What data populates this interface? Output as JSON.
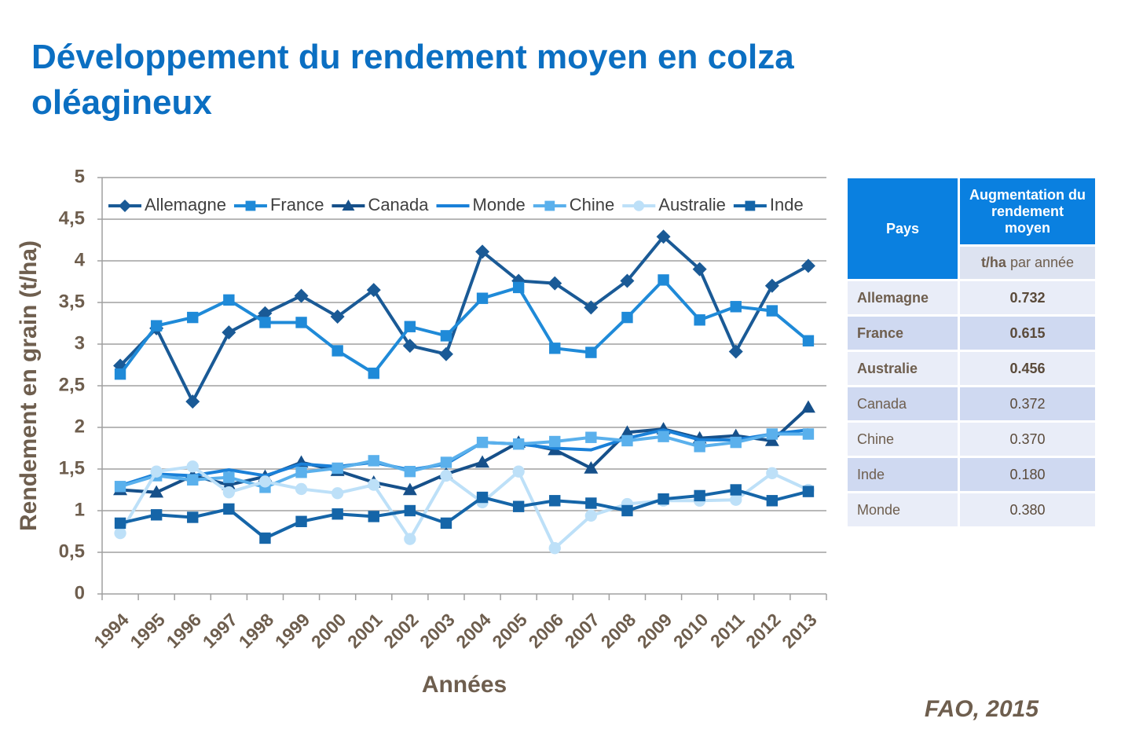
{
  "title": "Développement du rendement moyen en colza oléagineux",
  "chart_data": {
    "type": "line",
    "xlabel": "Années",
    "ylabel": "Rendement en grain (t/ha)",
    "categories": [
      "1994",
      "1995",
      "1996",
      "1997",
      "1998",
      "1999",
      "2000",
      "2001",
      "2002",
      "2003",
      "2004",
      "2005",
      "2006",
      "2007",
      "2008",
      "2009",
      "2010",
      "2011",
      "2012",
      "2013"
    ],
    "ylim": [
      0,
      5
    ],
    "yticks": [
      0,
      {
        "value": 0.5,
        "label": "0,5"
      },
      1,
      {
        "value": 1.5,
        "label": "1,5"
      },
      2,
      {
        "value": 2.5,
        "label": "2,5"
      },
      3,
      {
        "value": 3.5,
        "label": "3,5"
      },
      4,
      {
        "value": 4.5,
        "label": "4,5"
      },
      5
    ],
    "grid": true,
    "legend": "top",
    "series": [
      {
        "name": "Allemagne",
        "color": "#1a5a96",
        "marker": "diamond",
        "values": [
          2.74,
          3.19,
          2.31,
          3.14,
          3.37,
          3.58,
          3.33,
          3.65,
          2.98,
          2.88,
          4.11,
          3.76,
          3.73,
          3.44,
          3.76,
          4.29,
          3.9,
          2.91,
          3.7,
          3.94
        ]
      },
      {
        "name": "France",
        "color": "#1f8ad8",
        "marker": "square",
        "values": [
          2.64,
          3.22,
          3.32,
          3.53,
          3.26,
          3.26,
          2.92,
          2.65,
          3.21,
          3.1,
          3.55,
          3.68,
          2.95,
          2.9,
          3.32,
          3.77,
          3.29,
          3.45,
          3.4,
          3.04
        ]
      },
      {
        "name": "Canada",
        "color": "#16508a",
        "marker": "triangle",
        "values": [
          1.25,
          1.22,
          1.42,
          1.31,
          1.41,
          1.58,
          1.48,
          1.34,
          1.25,
          1.44,
          1.58,
          1.82,
          1.73,
          1.51,
          1.94,
          1.98,
          1.87,
          1.9,
          1.84,
          2.24
        ]
      },
      {
        "name": "Monde",
        "color": "#1a80d8",
        "marker": "none",
        "values": [
          1.3,
          1.44,
          1.42,
          1.49,
          1.42,
          1.56,
          1.53,
          1.58,
          1.49,
          1.56,
          1.82,
          1.8,
          1.75,
          1.73,
          1.87,
          1.97,
          1.85,
          1.85,
          1.92,
          1.97
        ]
      },
      {
        "name": "Chine",
        "color": "#5ab0ec",
        "marker": "square",
        "values": [
          1.29,
          1.42,
          1.37,
          1.4,
          1.28,
          1.46,
          1.51,
          1.6,
          1.47,
          1.58,
          1.82,
          1.8,
          1.83,
          1.88,
          1.84,
          1.89,
          1.77,
          1.82,
          1.92,
          1.92
        ]
      },
      {
        "name": "Australie",
        "color": "#bde0f8",
        "marker": "circle",
        "values": [
          0.73,
          1.47,
          1.53,
          1.22,
          1.35,
          1.26,
          1.21,
          1.31,
          0.66,
          1.42,
          1.1,
          1.47,
          0.55,
          0.94,
          1.08,
          1.12,
          1.12,
          1.13,
          1.45,
          1.25
        ]
      },
      {
        "name": "Inde",
        "color": "#1565a8",
        "marker": "square",
        "values": [
          0.85,
          0.95,
          0.92,
          1.02,
          0.67,
          0.87,
          0.96,
          0.93,
          1.0,
          0.85,
          1.16,
          1.05,
          1.12,
          1.09,
          1.0,
          1.14,
          1.18,
          1.25,
          1.12,
          1.23
        ]
      }
    ]
  },
  "table": {
    "header": [
      "Pays",
      "Augmentation du rendement moyen"
    ],
    "unit": "t/ha",
    "unit_suffix": "par année",
    "rows": [
      [
        "Allemagne",
        "0.732"
      ],
      [
        "France",
        "0.615"
      ],
      [
        "Australie",
        "0.456"
      ],
      [
        "Canada",
        "0.372"
      ],
      [
        "Chine",
        "0.370"
      ],
      [
        "Inde",
        "0.180"
      ],
      [
        "Monde",
        "0.380"
      ]
    ]
  },
  "source": "FAO, 2015"
}
